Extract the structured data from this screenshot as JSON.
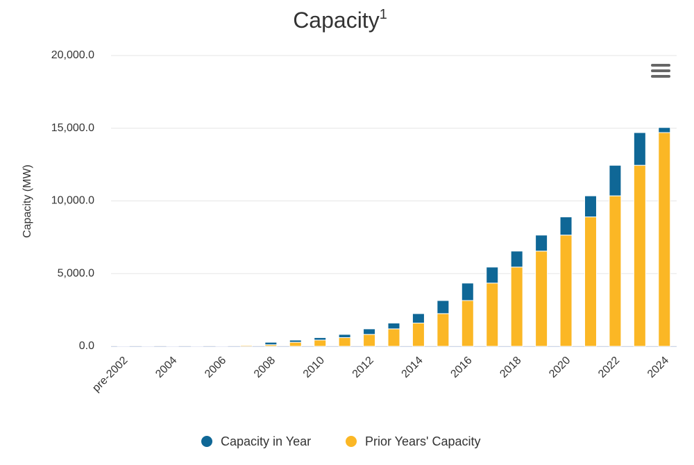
{
  "chart_data": {
    "type": "stacked_bar",
    "title": "Capacity",
    "title_superscript": "1",
    "y_axis_label": "Capacity (MW)",
    "categories": [
      "pre-2002",
      null,
      "2004",
      null,
      "2006",
      null,
      "2008",
      null,
      "2010",
      null,
      "2012",
      null,
      "2014",
      null,
      "2016",
      null,
      "2018",
      null,
      "2020",
      null,
      "2022",
      null,
      "2024"
    ],
    "series": [
      {
        "name": "Capacity in Year",
        "color": "#0f6796",
        "values": [
          20,
          5,
          5,
          15,
          25,
          40,
          170,
          150,
          170,
          220,
          380,
          400,
          650,
          900,
          1200,
          1100,
          1100,
          1100,
          1250,
          1450,
          2100,
          2250,
          350
        ]
      },
      {
        "name": "Prior Years' Capacity",
        "color": "#fbb725",
        "values": [
          0,
          20,
          25,
          30,
          45,
          70,
          110,
          280,
          430,
          600,
          820,
          1200,
          1600,
          2250,
          3150,
          4350,
          5450,
          6550,
          7650,
          8900,
          10350,
          12450,
          14700
        ]
      }
    ],
    "ylim": [
      0,
      20000
    ],
    "yticks": [
      {
        "value": 0,
        "label": "0.0"
      },
      {
        "value": 5000,
        "label": "5,000.0"
      },
      {
        "value": 10000,
        "label": "10,000.0"
      },
      {
        "value": 15000,
        "label": "15,000.0"
      },
      {
        "value": 20000,
        "label": "20,000.0"
      }
    ],
    "grid": true,
    "legend": "bottom"
  }
}
